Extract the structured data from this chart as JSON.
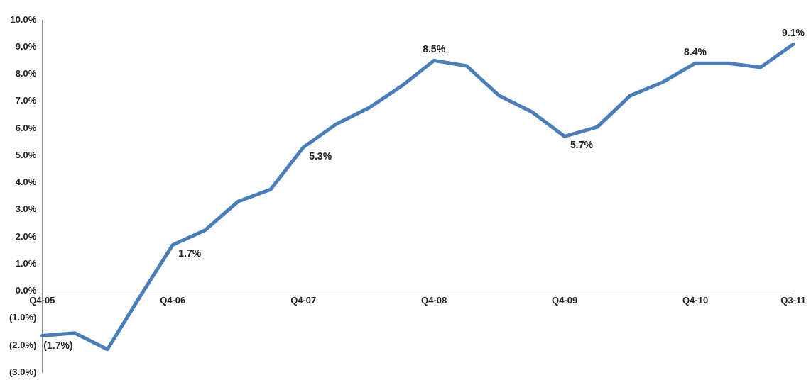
{
  "chart_data": {
    "type": "line",
    "categories": [
      "Q4-05",
      null,
      null,
      null,
      "Q4-06",
      null,
      null,
      null,
      "Q4-07",
      null,
      null,
      null,
      "Q4-08",
      null,
      null,
      null,
      "Q4-09",
      null,
      null,
      null,
      "Q4-10",
      null,
      null,
      "Q3-11"
    ],
    "series": [
      {
        "color": "#4a7ebb",
        "values": [
          -1.65,
          -1.55,
          -2.15,
          -0.2,
          1.7,
          2.25,
          3.3,
          3.75,
          5.3,
          6.15,
          6.75,
          7.55,
          8.5,
          8.3,
          7.2,
          6.6,
          5.7,
          6.05,
          7.2,
          7.7,
          8.4,
          8.4,
          8.25,
          9.1
        ],
        "value_labels": [
          "(1.7%)",
          null,
          null,
          null,
          "1.7%",
          null,
          null,
          null,
          "5.3%",
          null,
          null,
          null,
          "8.5%",
          null,
          null,
          null,
          "5.7%",
          null,
          null,
          null,
          "8.4%",
          null,
          null,
          "9.1%"
        ]
      }
    ],
    "ylim": [
      -3,
      10
    ],
    "yticks": [
      {
        "value": -3,
        "label": "(3.0%)"
      },
      {
        "value": -2,
        "label": "(2.0%)"
      },
      {
        "value": -1,
        "label": "(1.0%)"
      },
      {
        "value": 0,
        "label": "0.0%"
      },
      {
        "value": 1,
        "label": "1.0%"
      },
      {
        "value": 2,
        "label": "2.0%"
      },
      {
        "value": 3,
        "label": "3.0%"
      },
      {
        "value": 4,
        "label": "4.0%"
      },
      {
        "value": 5,
        "label": "5.0%"
      },
      {
        "value": 6,
        "label": "6.0%"
      },
      {
        "value": 7,
        "label": "7.0%"
      },
      {
        "value": 8,
        "label": "8.0%"
      },
      {
        "value": 9,
        "label": "9.0%"
      },
      {
        "value": 10,
        "label": "10.0%"
      }
    ],
    "grid": false,
    "legend": false,
    "marker": "none",
    "line_style": "solid"
  }
}
